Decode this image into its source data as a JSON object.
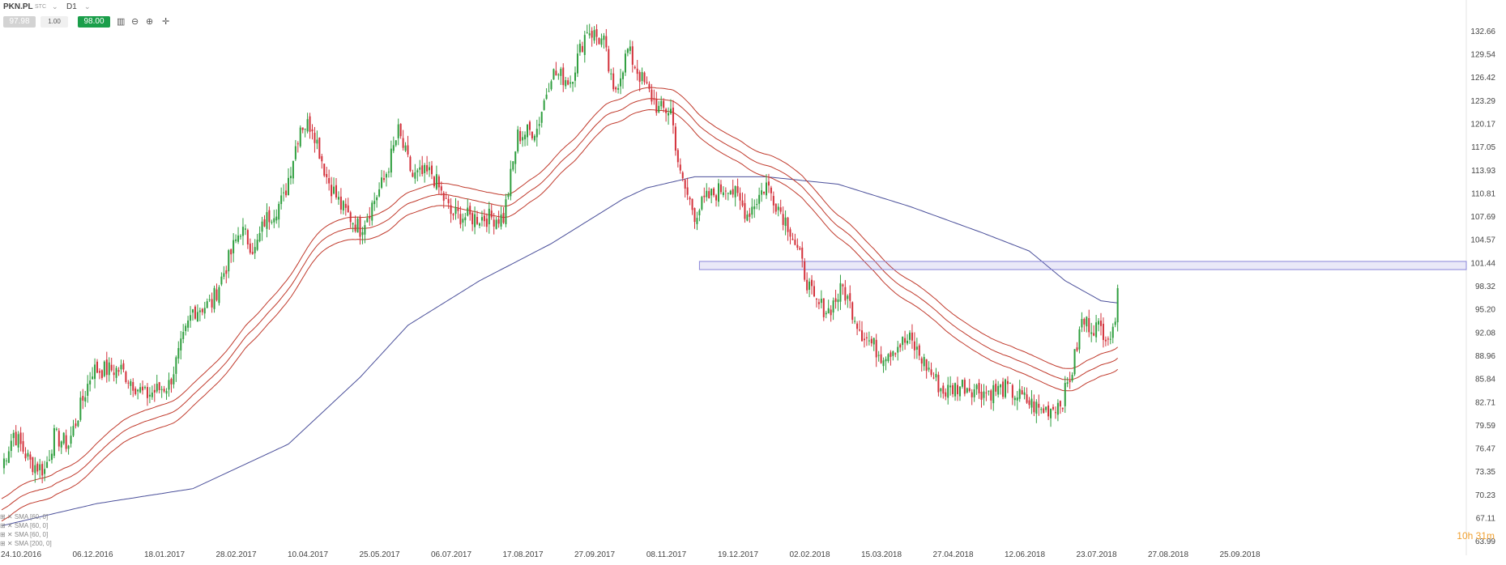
{
  "toolbar": {
    "symbol": "PKN.PL",
    "symbol_sub": "STC",
    "timeframe": "D1",
    "bid": "97.98",
    "volume": "1.00",
    "ask": "98.00"
  },
  "timer": "10h 31m",
  "legend": [
    "SMA [60, 0]",
    "SMA [60, 0]",
    "SMA [60, 0]",
    "SMA [200, 0]"
  ],
  "colors": {
    "ema_band": "#c0392b",
    "sma200": "#4a4f9a",
    "bull": "#2e9e3e",
    "bear": "#d3303a",
    "zone": "#8a86d8"
  },
  "chart_data": {
    "type": "candlestick",
    "title": "",
    "y_axis_ticks": [
      "132.66",
      "129.54",
      "126.42",
      "123.29",
      "120.17",
      "117.05",
      "113.93",
      "110.81",
      "107.69",
      "104.57",
      "101.44",
      "98.32",
      "95.20",
      "92.08",
      "88.96",
      "85.84",
      "82.71",
      "79.59",
      "76.47",
      "73.35",
      "70.23",
      "67.11",
      "63.99"
    ],
    "ylim": [
      63.99,
      135.0
    ],
    "x_axis_ticks": [
      "24.10.2016",
      "06.12.2016",
      "18.01.2017",
      "28.02.2017",
      "10.04.2017",
      "25.05.2017",
      "06.07.2017",
      "17.08.2017",
      "27.09.2017",
      "08.11.2017",
      "19.12.2017",
      "02.02.2018",
      "15.03.2018",
      "27.04.2018",
      "12.06.2018",
      "23.07.2018",
      "27.08.2018",
      "25.09.2018"
    ],
    "x_tick_index": [
      0,
      30,
      60,
      90,
      120,
      150,
      180,
      210,
      240,
      270,
      300,
      330,
      360,
      390,
      420,
      450,
      480,
      510
    ],
    "price_keypoints": [
      [
        0,
        74
      ],
      [
        5,
        78.5
      ],
      [
        12,
        74.5
      ],
      [
        18,
        73.5
      ],
      [
        22,
        78
      ],
      [
        28,
        77
      ],
      [
        38,
        87
      ],
      [
        50,
        87
      ],
      [
        60,
        83.5
      ],
      [
        70,
        85
      ],
      [
        80,
        95
      ],
      [
        88,
        96
      ],
      [
        100,
        106
      ],
      [
        106,
        103
      ],
      [
        110,
        107
      ],
      [
        118,
        110
      ],
      [
        125,
        120
      ],
      [
        130,
        120
      ],
      [
        136,
        113
      ],
      [
        142,
        109
      ],
      [
        150,
        106
      ],
      [
        160,
        112.5
      ],
      [
        166,
        119
      ],
      [
        172,
        113
      ],
      [
        180,
        113.5
      ],
      [
        188,
        108
      ],
      [
        196,
        107.5
      ],
      [
        210,
        107.5
      ],
      [
        216,
        118.5
      ],
      [
        224,
        119.5
      ],
      [
        230,
        127
      ],
      [
        238,
        126
      ],
      [
        245,
        133
      ],
      [
        252,
        131
      ],
      [
        256,
        124
      ],
      [
        262,
        130
      ],
      [
        268,
        126
      ],
      [
        275,
        122
      ],
      [
        280,
        122
      ],
      [
        284,
        113
      ],
      [
        290,
        108
      ],
      [
        295,
        110
      ],
      [
        304,
        112
      ],
      [
        312,
        108
      ],
      [
        320,
        112
      ],
      [
        330,
        106
      ],
      [
        335,
        101
      ],
      [
        340,
        96
      ],
      [
        346,
        95
      ],
      [
        352,
        98
      ],
      [
        360,
        92
      ],
      [
        368,
        89
      ],
      [
        376,
        90.5
      ],
      [
        380,
        91
      ],
      [
        386,
        88
      ],
      [
        394,
        84
      ],
      [
        402,
        85
      ],
      [
        412,
        84
      ],
      [
        420,
        84.5
      ],
      [
        428,
        83
      ],
      [
        435,
        81.5
      ],
      [
        440,
        82
      ],
      [
        444,
        83
      ],
      [
        448,
        87
      ],
      [
        452,
        93.5
      ],
      [
        460,
        92.5
      ],
      [
        465,
        91.5
      ],
      [
        467,
        98
      ]
    ],
    "sma200_keypoints": [
      [
        0,
        66
      ],
      [
        40,
        69
      ],
      [
        80,
        71
      ],
      [
        120,
        77
      ],
      [
        150,
        86
      ],
      [
        170,
        93
      ],
      [
        200,
        99
      ],
      [
        230,
        104
      ],
      [
        260,
        110
      ],
      [
        270,
        111.5
      ],
      [
        290,
        113
      ],
      [
        320,
        113
      ],
      [
        350,
        112
      ],
      [
        380,
        109
      ],
      [
        410,
        105.5
      ],
      [
        430,
        103
      ],
      [
        445,
        99
      ],
      [
        460,
        96.3
      ],
      [
        467,
        96
      ]
    ],
    "ema_band": {
      "center_span": 70,
      "offsets": [
        1.5,
        0,
        -1.5
      ]
    },
    "support_zone": [
      100.5,
      101.6
    ],
    "zone_start_index": 292,
    "last_index": 467
  }
}
